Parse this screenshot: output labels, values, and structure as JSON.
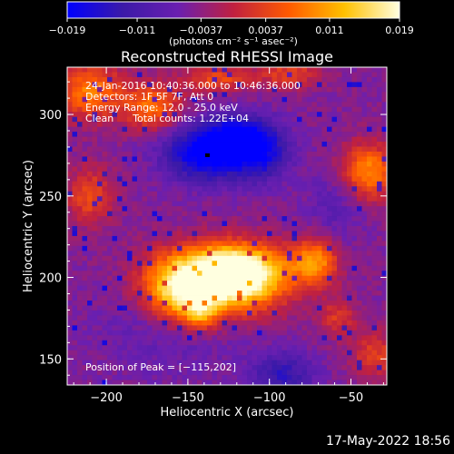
{
  "chart_data": {
    "type": "heatmap",
    "title": "Reconstructed RHESSI Image",
    "xlabel": "Heliocentric X (arcsec)",
    "ylabel": "Heliocentric Y (arcsec)",
    "xlim": [
      -224,
      -28
    ],
    "ylim": [
      134,
      329
    ],
    "x_ticks": [
      -200,
      -150,
      -100,
      -50
    ],
    "x_tick_labels": [
      "−200",
      "−150",
      "−100",
      "−50"
    ],
    "y_ticks": [
      150,
      200,
      250,
      300
    ],
    "y_tick_labels": [
      "150",
      "200",
      "250",
      "300"
    ],
    "grid": false,
    "colorbar": {
      "range": [
        -0.019,
        0.019
      ],
      "ticks": [
        -0.019,
        -0.011,
        -0.0037,
        0.0037,
        0.011,
        0.019
      ],
      "tick_labels": [
        "−0.019",
        "−0.011",
        "−0.0037",
        "0.0037",
        "0.011",
        "0.019"
      ],
      "unit_label": "(photons cm⁻² s⁻¹ asec⁻²)",
      "colormap": [
        "#0000ff",
        "#3b1aa8",
        "#6a1fb0",
        "#c02040",
        "#ff5a00",
        "#ffc000",
        "#ffffe0"
      ]
    },
    "annotations": [
      "24-Jan-2016 10:40:36.000 to 10:46:36.000",
      "Detectors: 1F 5F 7F, Att 0",
      "Energy Range: 12.0 - 25.0 keV",
      "Clean      Total counts: 1.22E+04"
    ],
    "peak_label": "Position of Peak = [−115,202]",
    "peak": [
      -115,
      202
    ],
    "sources": [
      {
        "x": -130,
        "y": 198,
        "sx": 26,
        "sy": 14,
        "amp": 0.028
      },
      {
        "x": -118,
        "y": 206,
        "sx": 18,
        "sy": 10,
        "amp": 0.012
      },
      {
        "x": -158,
        "y": 190,
        "sx": 14,
        "sy": 14,
        "amp": 0.012
      },
      {
        "x": -142,
        "y": 178,
        "sx": 8,
        "sy": 8,
        "amp": 0.01
      },
      {
        "x": -72,
        "y": 210,
        "sx": 10,
        "sy": 10,
        "amp": 0.014
      },
      {
        "x": -210,
        "y": 314,
        "sx": 14,
        "sy": 12,
        "amp": 0.013
      },
      {
        "x": -172,
        "y": 305,
        "sx": 12,
        "sy": 10,
        "amp": 0.012
      },
      {
        "x": -132,
        "y": 322,
        "sx": 14,
        "sy": 6,
        "amp": 0.009
      },
      {
        "x": -88,
        "y": 325,
        "sx": 14,
        "sy": 6,
        "amp": 0.008
      },
      {
        "x": -40,
        "y": 265,
        "sx": 12,
        "sy": 12,
        "amp": 0.014
      },
      {
        "x": -210,
        "y": 250,
        "sx": 10,
        "sy": 12,
        "amp": 0.009
      },
      {
        "x": -35,
        "y": 152,
        "sx": 10,
        "sy": 10,
        "amp": 0.008
      },
      {
        "x": -58,
        "y": 175,
        "sx": 8,
        "sy": 8,
        "amp": 0.007
      },
      {
        "x": -138,
        "y": 276,
        "sx": 18,
        "sy": 12,
        "amp": -0.017
      },
      {
        "x": -105,
        "y": 277,
        "sx": 12,
        "sy": 12,
        "amp": -0.012
      },
      {
        "x": -120,
        "y": 290,
        "sx": 14,
        "sy": 8,
        "amp": -0.008
      },
      {
        "x": -92,
        "y": 140,
        "sx": 14,
        "sy": 10,
        "amp": -0.009
      },
      {
        "x": -160,
        "y": 170,
        "sx": 30,
        "sy": 20,
        "amp": -0.004
      },
      {
        "x": -60,
        "y": 245,
        "sx": 12,
        "sy": 18,
        "amp": -0.004
      }
    ],
    "min_marker": [
      -138,
      275
    ]
  },
  "timestamp": "17-May-2022 18:56"
}
